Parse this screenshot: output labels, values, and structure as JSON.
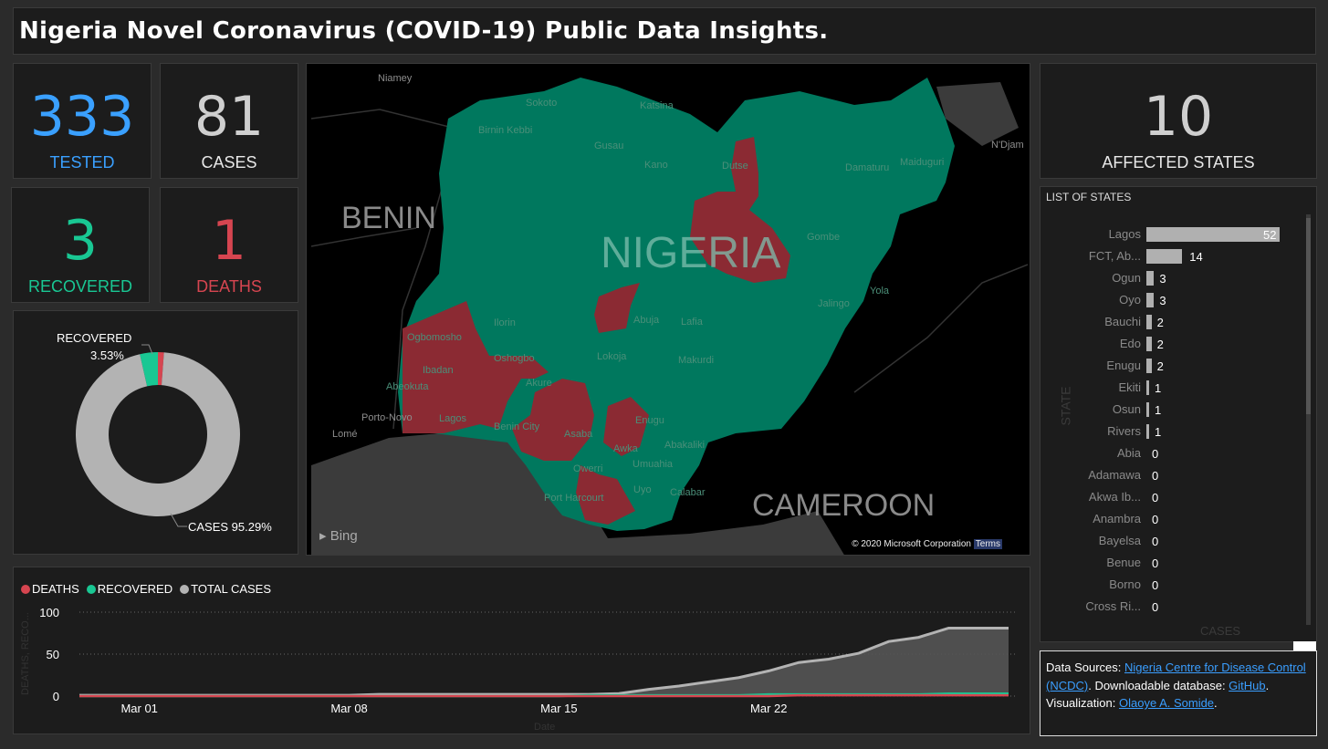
{
  "title": "Nigeria Novel Coronavirus (COVID-19) Public Data Insights.",
  "cards": {
    "tested": {
      "value": "333",
      "label": "TESTED",
      "color": "#3aa0ff"
    },
    "cases": {
      "value": "81",
      "label": "CASES",
      "color": "#cfcfcf"
    },
    "recovered": {
      "value": "3",
      "label": "RECOVERED",
      "color": "#19c793"
    },
    "deaths": {
      "value": "1",
      "label": "DEATHS",
      "color": "#d64550"
    },
    "affected": {
      "value": "10",
      "label": "AFFECTED STATES",
      "color": "#cfcfcf"
    }
  },
  "donut": {
    "recovered_label": "RECOVERED",
    "recovered_pct": "3.53%",
    "cases_label": "CASES 95.29%",
    "slices": [
      {
        "name": "CASES",
        "pct": 95.29,
        "color": "#b3b3b3"
      },
      {
        "name": "RECOVERED",
        "pct": 3.53,
        "color": "#19c793"
      },
      {
        "name": "DEATHS",
        "pct": 1.18,
        "color": "#d64550"
      }
    ]
  },
  "map": {
    "countries": {
      "benin": "BENIN",
      "cameroon": "CAMEROON",
      "nigeria": "NIGERIA"
    },
    "cities": [
      "Niamey",
      "Sokoto",
      "Katsina",
      "Birnin Kebbi",
      "Gusau",
      "Kano",
      "Dutse",
      "Damaturu",
      "Maiduguri",
      "Gombe",
      "Abuja",
      "Jalingo",
      "Lafia",
      "Ilorin",
      "Ogbomosho",
      "Oshogbo",
      "Ibadan",
      "Abeokuta",
      "Akure",
      "Lokoja",
      "Makurdi",
      "Lagos",
      "Benin City",
      "Asaba",
      "Enugu",
      "Abakaliki",
      "Awka",
      "Owerri",
      "Umuahia",
      "Uyo",
      "Calabar",
      "Port Harcourt",
      "Porto-Novo",
      "Lomé",
      "N'Djam",
      "Yola"
    ],
    "bing": "Bing",
    "credit": "© 2020 Microsoft Corporation",
    "terms": "Terms",
    "colors": {
      "nigeria": "#00785e",
      "affected": "#8b2a33",
      "land": "#1a1a1a",
      "sea": "#3a3a3a"
    }
  },
  "states_panel": {
    "header": "LIST OF STATES",
    "axis_y": "STATE",
    "axis_x": "CASES",
    "rows": [
      {
        "name": "Lagos",
        "value": 52
      },
      {
        "name": "FCT, Ab...",
        "value": 14
      },
      {
        "name": "Ogun",
        "value": 3
      },
      {
        "name": "Oyo",
        "value": 3
      },
      {
        "name": "Bauchi",
        "value": 2
      },
      {
        "name": "Edo",
        "value": 2
      },
      {
        "name": "Enugu",
        "value": 2
      },
      {
        "name": "Ekiti",
        "value": 1
      },
      {
        "name": "Osun",
        "value": 1
      },
      {
        "name": "Rivers",
        "value": 1
      },
      {
        "name": "Abia",
        "value": 0
      },
      {
        "name": "Adamawa",
        "value": 0
      },
      {
        "name": "Akwa Ib...",
        "value": 0
      },
      {
        "name": "Anambra",
        "value": 0
      },
      {
        "name": "Bayelsa",
        "value": 0
      },
      {
        "name": "Benue",
        "value": 0
      },
      {
        "name": "Borno",
        "value": 0
      },
      {
        "name": "Cross Ri...",
        "value": 0
      }
    ]
  },
  "sources": {
    "t1": "Data Sources: ",
    "link1": "Nigeria Centre for Disease Control (NCDC)",
    "t2": ". Downloadable database: ",
    "link2": "GitHub",
    "t3": ". Visualization: ",
    "link3": "Olaoye A. Somide",
    "t4": "."
  },
  "chart_data": {
    "type": "area",
    "legend": [
      {
        "name": "DEATHS",
        "color": "#d64550"
      },
      {
        "name": "RECOVERED",
        "color": "#19c793"
      },
      {
        "name": "TOTAL CASES",
        "color": "#b3b3b3"
      }
    ],
    "xlabel": "Date",
    "ylabel": "DEATHS, RECO...",
    "ylim": [
      0,
      100
    ],
    "yticks": [
      0,
      50,
      100
    ],
    "xticks": [
      "Mar 01",
      "Mar 08",
      "Mar 15",
      "Mar 22"
    ],
    "x": [
      "Feb 28",
      "Feb 29",
      "Mar 01",
      "Mar 02",
      "Mar 03",
      "Mar 04",
      "Mar 05",
      "Mar 06",
      "Mar 07",
      "Mar 08",
      "Mar 09",
      "Mar 10",
      "Mar 11",
      "Mar 12",
      "Mar 13",
      "Mar 14",
      "Mar 15",
      "Mar 16",
      "Mar 17",
      "Mar 18",
      "Mar 19",
      "Mar 20",
      "Mar 21",
      "Mar 22",
      "Mar 23",
      "Mar 24",
      "Mar 25",
      "Mar 26",
      "Mar 27",
      "Mar 28",
      "Mar 29",
      "Mar 30"
    ],
    "series": [
      {
        "name": "TOTAL CASES",
        "values": [
          1,
          1,
          1,
          1,
          1,
          1,
          1,
          1,
          1,
          1,
          2,
          2,
          2,
          2,
          2,
          2,
          2,
          2,
          3,
          8,
          12,
          17,
          22,
          30,
          40,
          44,
          51,
          65,
          70,
          81,
          81,
          81
        ]
      },
      {
        "name": "RECOVERED",
        "values": [
          0,
          0,
          0,
          0,
          0,
          0,
          0,
          0,
          0,
          0,
          0,
          0,
          0,
          0,
          0,
          0,
          0,
          1,
          1,
          1,
          1,
          1,
          1,
          2,
          2,
          2,
          2,
          2,
          2,
          3,
          3,
          3
        ]
      },
      {
        "name": "DEATHS",
        "values": [
          0,
          0,
          0,
          0,
          0,
          0,
          0,
          0,
          0,
          0,
          0,
          0,
          0,
          0,
          0,
          0,
          0,
          0,
          0,
          0,
          0,
          0,
          0,
          0,
          1,
          1,
          1,
          1,
          1,
          1,
          1,
          1
        ]
      }
    ]
  }
}
